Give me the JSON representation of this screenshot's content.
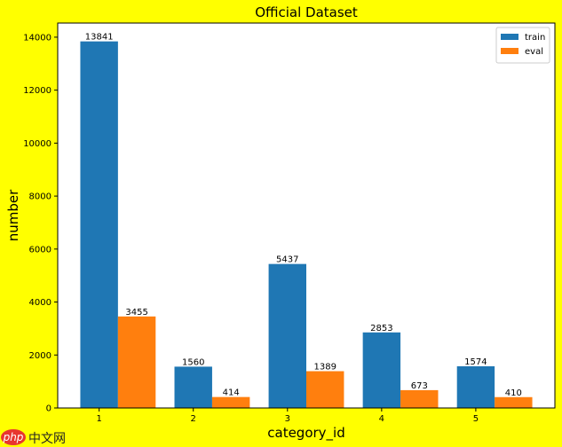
{
  "chart_data": {
    "type": "bar",
    "title": "Official Dataset",
    "x_label": "category_id",
    "y_label": "number",
    "categories": [
      "1",
      "2",
      "3",
      "4",
      "5"
    ],
    "series": [
      {
        "name": "train",
        "color": "#1f77b4",
        "values": [
          13841,
          1560,
          5437,
          2853,
          1574
        ]
      },
      {
        "name": "eval",
        "color": "#ff7f0e",
        "values": [
          3455,
          414,
          1389,
          673,
          410
        ]
      }
    ],
    "ylim": [
      0,
      14533
    ],
    "yticks": [
      0,
      2000,
      4000,
      6000,
      8000,
      10000,
      12000,
      14000
    ],
    "legend": "upper right",
    "watermark": {
      "logo": "php",
      "text": "中文网"
    }
  }
}
